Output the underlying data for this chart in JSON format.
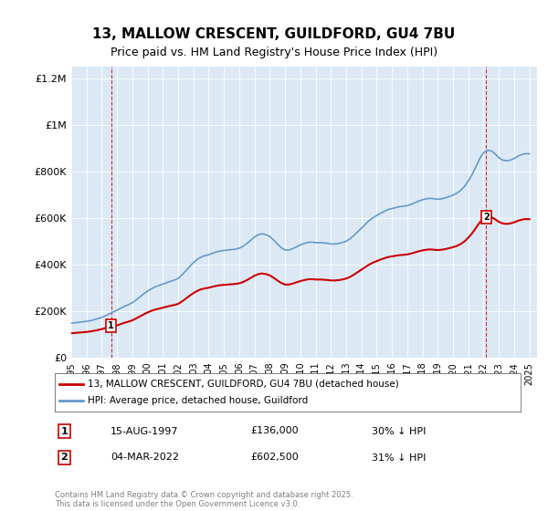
{
  "title_line1": "13, MALLOW CRESCENT, GUILDFORD, GU4 7BU",
  "title_line2": "Price paid vs. HM Land Registry's House Price Index (HPI)",
  "bg_color": "#dce9f5",
  "plot_bg": "#dce9f5",
  "legend_label1": "13, MALLOW CRESCENT, GUILDFORD, GU4 7BU (detached house)",
  "legend_label2": "HPI: Average price, detached house, Guildford",
  "sale1_label": "1",
  "sale1_date": "15-AUG-1997",
  "sale1_price": "£136,000",
  "sale1_note": "30% ↓ HPI",
  "sale2_label": "2",
  "sale2_date": "04-MAR-2022",
  "sale2_price": "£602,500",
  "sale2_note": "31% ↓ HPI",
  "footer": "Contains HM Land Registry data © Crown copyright and database right 2025.\nThis data is licensed under the Open Government Licence v3.0.",
  "sale1_year": 1997.62,
  "sale1_value": 136000,
  "sale2_year": 2022.17,
  "sale2_value": 602500,
  "ylim": [
    0,
    1250000
  ],
  "xlim_min": 1995.0,
  "xlim_max": 2025.5,
  "yticks": [
    0,
    200000,
    400000,
    600000,
    800000,
    1000000,
    1200000
  ],
  "ytick_labels": [
    "£0",
    "£200K",
    "£400K",
    "£600K",
    "£800K",
    "£1M",
    "£1.2M"
  ],
  "xticks": [
    1995,
    1996,
    1997,
    1998,
    1999,
    2000,
    2001,
    2002,
    2003,
    2004,
    2005,
    2006,
    2007,
    2008,
    2009,
    2010,
    2011,
    2012,
    2013,
    2014,
    2015,
    2016,
    2017,
    2018,
    2019,
    2020,
    2021,
    2022,
    2023,
    2024,
    2025
  ],
  "hpi_years": [
    1995.0,
    1995.25,
    1995.5,
    1995.75,
    1996.0,
    1996.25,
    1996.5,
    1996.75,
    1997.0,
    1997.25,
    1997.5,
    1997.75,
    1998.0,
    1998.25,
    1998.5,
    1998.75,
    1999.0,
    1999.25,
    1999.5,
    1999.75,
    2000.0,
    2000.25,
    2000.5,
    2000.75,
    2001.0,
    2001.25,
    2001.5,
    2001.75,
    2002.0,
    2002.25,
    2002.5,
    2002.75,
    2003.0,
    2003.25,
    2003.5,
    2003.75,
    2004.0,
    2004.25,
    2004.5,
    2004.75,
    2005.0,
    2005.25,
    2005.5,
    2005.75,
    2006.0,
    2006.25,
    2006.5,
    2006.75,
    2007.0,
    2007.25,
    2007.5,
    2007.75,
    2008.0,
    2008.25,
    2008.5,
    2008.75,
    2009.0,
    2009.25,
    2009.5,
    2009.75,
    2010.0,
    2010.25,
    2010.5,
    2010.75,
    2011.0,
    2011.25,
    2011.5,
    2011.75,
    2012.0,
    2012.25,
    2012.5,
    2012.75,
    2013.0,
    2013.25,
    2013.5,
    2013.75,
    2014.0,
    2014.25,
    2014.5,
    2014.75,
    2015.0,
    2015.25,
    2015.5,
    2015.75,
    2016.0,
    2016.25,
    2016.5,
    2016.75,
    2017.0,
    2017.25,
    2017.5,
    2017.75,
    2018.0,
    2018.25,
    2018.5,
    2018.75,
    2019.0,
    2019.25,
    2019.5,
    2019.75,
    2020.0,
    2020.25,
    2020.5,
    2020.75,
    2021.0,
    2021.25,
    2021.5,
    2021.75,
    2022.0,
    2022.25,
    2022.5,
    2022.75,
    2023.0,
    2023.25,
    2023.5,
    2023.75,
    2024.0,
    2024.25,
    2024.5,
    2024.75,
    2025.0
  ],
  "hpi_values": [
    148000,
    150000,
    152000,
    154000,
    156000,
    159000,
    163000,
    168000,
    173000,
    180000,
    188000,
    196000,
    204000,
    213000,
    221000,
    228000,
    236000,
    248000,
    261000,
    274000,
    286000,
    296000,
    304000,
    310000,
    316000,
    322000,
    328000,
    333000,
    340000,
    355000,
    373000,
    391000,
    408000,
    422000,
    432000,
    438000,
    442000,
    448000,
    454000,
    458000,
    460000,
    462000,
    464000,
    466000,
    470000,
    478000,
    490000,
    504000,
    518000,
    528000,
    532000,
    528000,
    520000,
    505000,
    488000,
    472000,
    462000,
    462000,
    468000,
    476000,
    484000,
    490000,
    495000,
    496000,
    494000,
    494000,
    493000,
    491000,
    488000,
    488000,
    490000,
    494000,
    500000,
    510000,
    524000,
    540000,
    556000,
    572000,
    588000,
    600000,
    610000,
    620000,
    628000,
    636000,
    640000,
    644000,
    648000,
    650000,
    652000,
    658000,
    665000,
    672000,
    678000,
    682000,
    684000,
    682000,
    680000,
    682000,
    686000,
    692000,
    698000,
    706000,
    718000,
    735000,
    758000,
    786000,
    820000,
    855000,
    880000,
    890000,
    888000,
    875000,
    858000,
    848000,
    845000,
    848000,
    855000,
    865000,
    872000,
    876000,
    875000
  ],
  "red_color": "#cc0000",
  "blue_color": "#6699cc",
  "dashed_color": "#cc0000",
  "line2_color": "#99bbdd"
}
